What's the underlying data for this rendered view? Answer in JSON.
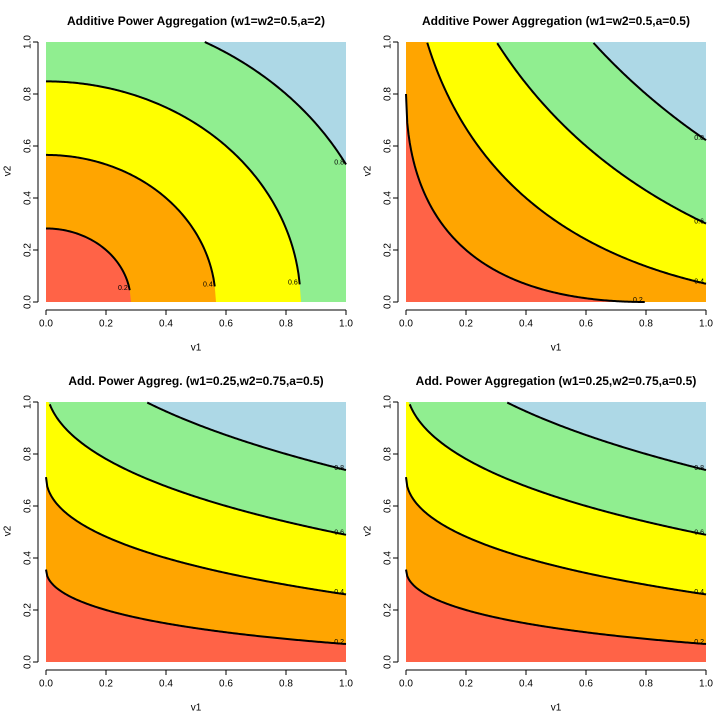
{
  "chart_data": [
    {
      "type": "contour",
      "title": "Additive Power Aggregation (w1=w2=0.5,a=2)",
      "w1": 0.5,
      "w2": 0.5,
      "a": 2,
      "x_label": "v1",
      "y_label": "v2",
      "xlim": [
        0,
        1
      ],
      "ylim": [
        0,
        1
      ],
      "xticks": [
        {
          "value": 0,
          "label": "0.0"
        },
        0.2,
        0.4,
        0.6,
        0.8,
        {
          "value": 1,
          "label": "1.0"
        }
      ],
      "yticks": [
        {
          "value": 0,
          "label": "0.0"
        },
        0.2,
        0.4,
        0.6,
        0.8,
        {
          "value": 1,
          "label": "1.0"
        }
      ],
      "levels": [
        0.2,
        0.4,
        0.6,
        0.8
      ],
      "colors": [
        "#ff6347",
        "#ffa500",
        "#ffff00",
        "#90ee90",
        "#add8e6"
      ]
    },
    {
      "type": "contour",
      "title": "Additive Power Aggregation (w1=w2=0.5,a=0.5)",
      "w1": 0.5,
      "w2": 0.5,
      "a": 0.5,
      "x_label": "v1",
      "y_label": "v2",
      "xlim": [
        0,
        1
      ],
      "ylim": [
        0,
        1
      ],
      "xticks": [
        {
          "value": 0,
          "label": "0.0"
        },
        0.2,
        0.4,
        0.6,
        0.8,
        {
          "value": 1,
          "label": "1.0"
        }
      ],
      "yticks": [
        {
          "value": 0,
          "label": "0.0"
        },
        0.2,
        0.4,
        0.6,
        0.8,
        {
          "value": 1,
          "label": "1.0"
        }
      ],
      "levels": [
        0.2,
        0.4,
        0.6,
        0.8
      ],
      "colors": [
        "#ff6347",
        "#ffa500",
        "#ffff00",
        "#90ee90",
        "#add8e6"
      ]
    },
    {
      "type": "contour",
      "title": "Add. Power Aggreg. (w1=0.25,w2=0.75,a=0.5)",
      "w1": 0.25,
      "w2": 0.75,
      "a": 0.5,
      "x_label": "v1",
      "y_label": "v2",
      "xlim": [
        0,
        1
      ],
      "ylim": [
        0,
        1
      ],
      "xticks": [
        {
          "value": 0,
          "label": "0.0"
        },
        0.2,
        0.4,
        0.6,
        0.8,
        {
          "value": 1,
          "label": "1.0"
        }
      ],
      "yticks": [
        {
          "value": 0,
          "label": "0.0"
        },
        0.2,
        0.4,
        0.6,
        0.8,
        {
          "value": 1,
          "label": "1.0"
        }
      ],
      "levels": [
        0.2,
        0.4,
        0.6,
        0.8
      ],
      "colors": [
        "#ff6347",
        "#ffa500",
        "#ffff00",
        "#90ee90",
        "#add8e6"
      ]
    },
    {
      "type": "contour",
      "title": "Add. Power Aggregation (w1=0.25,w2=0.75,a=0.5)",
      "w1": 0.25,
      "w2": 0.75,
      "a": 0.5,
      "x_label": "v1",
      "y_label": "v2",
      "xlim": [
        0,
        1
      ],
      "ylim": [
        0,
        1
      ],
      "xticks": [
        {
          "value": 0,
          "label": "0.0"
        },
        0.2,
        0.4,
        0.6,
        0.8,
        {
          "value": 1,
          "label": "1.0"
        }
      ],
      "yticks": [
        {
          "value": 0,
          "label": "0.0"
        },
        0.2,
        0.4,
        0.6,
        0.8,
        {
          "value": 1,
          "label": "1.0"
        }
      ],
      "levels": [
        0.2,
        0.4,
        0.6,
        0.8
      ],
      "colors": [
        "#ff6347",
        "#ffa500",
        "#ffff00",
        "#90ee90",
        "#add8e6"
      ]
    }
  ]
}
